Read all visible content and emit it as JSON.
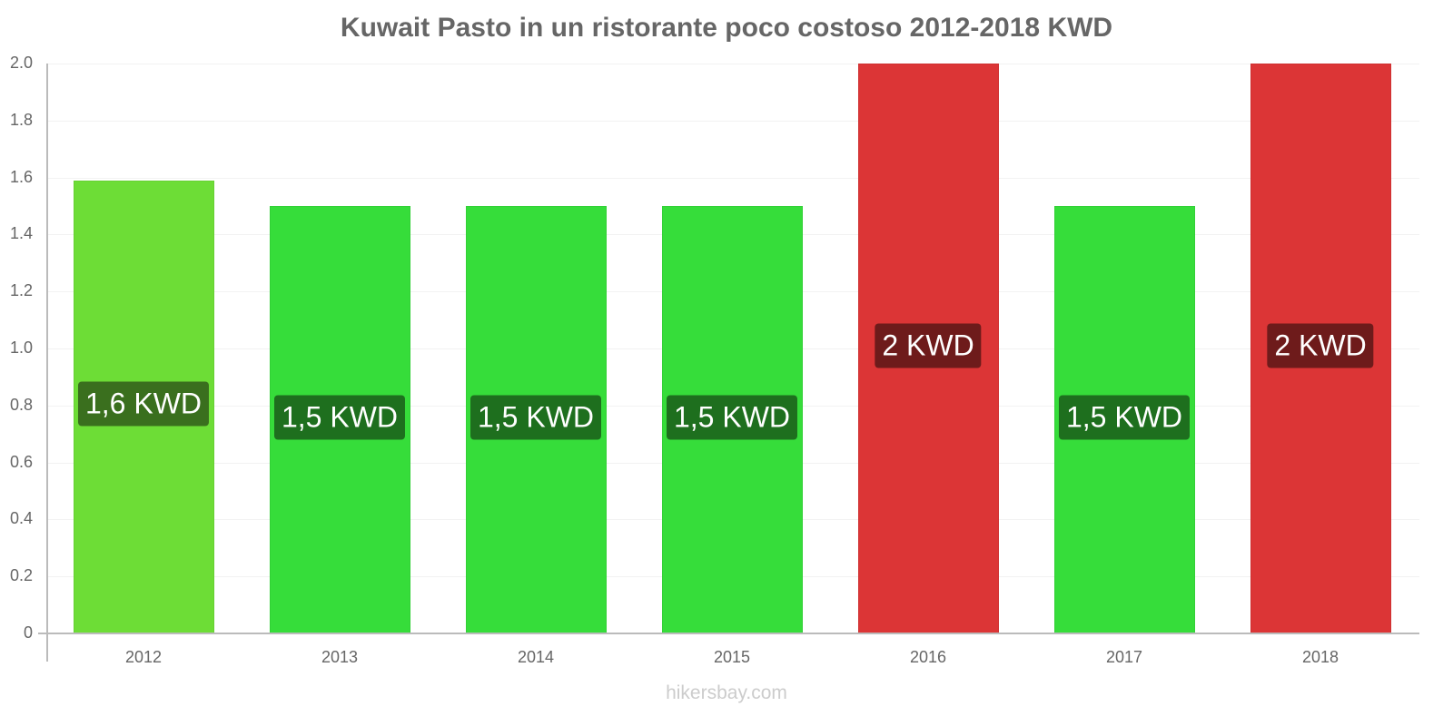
{
  "title": "Kuwait Pasto in un ristorante poco costoso 2012-2018 KWD",
  "footer": "hikersbay.com",
  "colors": {
    "light_green": "#6ddd36",
    "green": "#36dd3a",
    "red": "#dc3536",
    "label_light_green": "#3a6f1e",
    "label_green": "#1e6f1e",
    "label_red": "#6e1b1b"
  },
  "chart_data": {
    "type": "bar",
    "title": "Kuwait Pasto in un ristorante poco costoso 2012-2018 KWD",
    "xlabel": "",
    "ylabel": "",
    "categories": [
      "2012",
      "2013",
      "2014",
      "2015",
      "2016",
      "2017",
      "2018"
    ],
    "values": [
      1.59,
      1.5,
      1.5,
      1.5,
      2.0,
      1.5,
      2.0
    ],
    "data_labels": [
      "1,6 KWD",
      "1,5 KWD",
      "1,5 KWD",
      "1,5 KWD",
      "2 KWD",
      "1,5 KWD",
      "2 KWD"
    ],
    "bar_colors": [
      "#6ddd36",
      "#36dd3a",
      "#36dd3a",
      "#36dd3a",
      "#dc3536",
      "#36dd3a",
      "#dc3536"
    ],
    "ylim": [
      0,
      2.0
    ],
    "yticks": [
      "0",
      "0.2",
      "0.4",
      "0.6",
      "0.8",
      "1.0",
      "1.2",
      "1.4",
      "1.6",
      "1.8",
      "2.0"
    ],
    "grid": true,
    "legend": null
  }
}
